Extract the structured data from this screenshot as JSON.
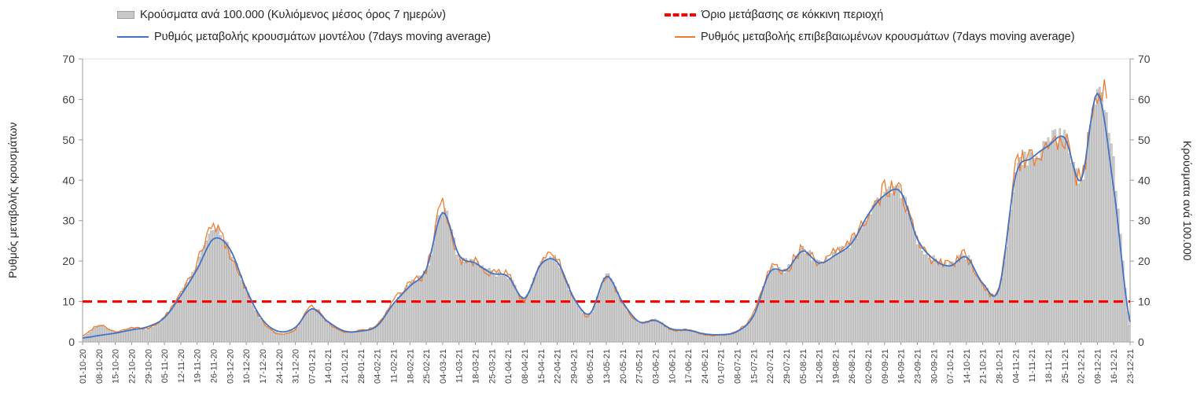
{
  "legend": {
    "bars_label": "Κρούσματα ανά 100.000 (Κυλιόμενος μέσος όρος 7 ημερών)",
    "threshold_label": "Όριο μετάβασης σε κόκκινη περιοχή",
    "model_label": "Ρυθμός μεταβολής κρουσμάτων μοντέλου (7days moving average)",
    "confirmed_label": "Ρυθμός μεταβολής επιβεβαιωμένων κρουσμάτων (7days moving average)"
  },
  "axes": {
    "left_title": "Ρυθμός μεταβολής κρουσμάτων",
    "right_title": "Κρούσματα ανά 100.000",
    "y_ticks": [
      0,
      10,
      20,
      30,
      40,
      50,
      60,
      70
    ],
    "y_max": 70
  },
  "colors": {
    "model_line": "#4472c4",
    "confirmed_line": "#ed7d31",
    "threshold_line": "#ff0000",
    "bar_fill": "#d2d2d2",
    "bar_stroke": "#a0a0a0",
    "axis_line": "#9b9b9b",
    "axis_text": "#404040"
  },
  "chart_data": {
    "type": "bar+line",
    "title": "",
    "ylim": [
      0,
      70
    ],
    "threshold_value": 10,
    "x_tick_labels": [
      "01-10-20",
      "08-10-20",
      "15-10-20",
      "22-10-20",
      "29-10-20",
      "05-11-20",
      "12-11-20",
      "19-11-20",
      "26-11-20",
      "03-12-20",
      "10-12-20",
      "17-12-20",
      "24-12-20",
      "31-12-20",
      "07-01-21",
      "14-01-21",
      "21-01-21",
      "28-01-21",
      "04-02-21",
      "11-02-21",
      "18-02-21",
      "25-02-21",
      "04-03-21",
      "11-03-21",
      "18-03-21",
      "25-03-21",
      "01-04-21",
      "08-04-21",
      "15-04-21",
      "22-04-21",
      "29-04-21",
      "06-05-21",
      "13-05-21",
      "20-05-21",
      "27-05-21",
      "03-06-21",
      "10-06-21",
      "17-06-21",
      "24-06-21",
      "01-07-21",
      "08-07-21",
      "15-07-21",
      "22-07-21",
      "29-07-21",
      "05-08-21",
      "12-08-21",
      "19-08-21",
      "26-08-21",
      "02-09-21",
      "09-09-21",
      "16-09-21",
      "23-09-21",
      "30-09-21",
      "07-10-21",
      "14-10-21",
      "21-10-21",
      "28-10-21",
      "04-11-21",
      "11-11-21",
      "18-11-21",
      "25-11-21",
      "02-12-21",
      "09-12-21",
      "16-12-21",
      "23-12-21"
    ],
    "series": [
      {
        "name": "Κρούσματα ανά 100.000 (Κυλιόμενος μέσος όρος 7 ημερών)",
        "type": "bar",
        "axis": "right",
        "values": [
          1.2,
          4.0,
          2.5,
          3.4,
          3.3,
          6.0,
          11.8,
          19.0,
          28.0,
          22.5,
          13.0,
          5.2,
          2.2,
          3.3,
          8.4,
          4.9,
          2.6,
          2.8,
          4.1,
          9.8,
          14.2,
          18.0,
          32.8,
          21.2,
          19.8,
          17.1,
          16.4,
          10.6,
          19.4,
          20.0,
          10.8,
          6.9,
          16.4,
          9.6,
          4.9,
          5.5,
          3.1,
          3.0,
          1.9,
          1.7,
          2.7,
          6.8,
          17.6,
          17.9,
          22.8,
          19.4,
          21.8,
          24.8,
          31.8,
          37.0,
          37.1,
          25.2,
          20.4,
          18.9,
          21.1,
          14.4,
          13.1,
          41.5,
          45.8,
          49.5,
          50.5,
          40.2,
          62.0,
          44.0,
          4.0
        ]
      },
      {
        "name": "Ρυθμός μεταβολής κρουσμάτων μοντέλου (7days moving average)",
        "type": "line",
        "axis": "left",
        "values": [
          1.0,
          1.6,
          2.2,
          3.0,
          3.8,
          6.0,
          11.5,
          18.0,
          25.5,
          23.0,
          13.0,
          5.5,
          2.6,
          3.6,
          8.2,
          5.0,
          2.7,
          2.7,
          4.0,
          9.5,
          13.8,
          18.0,
          32.0,
          21.5,
          19.5,
          17.0,
          16.2,
          10.8,
          19.2,
          19.8,
          11.0,
          7.0,
          16.2,
          9.8,
          5.0,
          5.3,
          3.2,
          2.9,
          2.0,
          1.8,
          2.6,
          6.5,
          17.3,
          17.8,
          22.5,
          19.5,
          21.5,
          24.5,
          31.5,
          36.3,
          37.0,
          25.5,
          20.5,
          18.8,
          21.0,
          14.5,
          13.2,
          41.0,
          45.5,
          48.5,
          50.5,
          40.0,
          61.5,
          38.0,
          5.0
        ]
      },
      {
        "name": "Ρυθμός μεταβολής επιβεβαιωμένων κρουσμάτων (7days moving average)",
        "type": "line",
        "axis": "left",
        "end_x_index": 62.6,
        "values": [
          1.5,
          4.2,
          2.6,
          3.5,
          3.4,
          6.2,
          12.0,
          19.5,
          28.5,
          22.0,
          13.0,
          5.0,
          2.0,
          3.2,
          8.6,
          4.8,
          2.5,
          2.9,
          4.2,
          10.0,
          14.5,
          18.0,
          33.2,
          21.0,
          20.0,
          17.2,
          16.5,
          10.5,
          19.6,
          20.2,
          10.6,
          6.8,
          16.5,
          9.5,
          4.8,
          5.6,
          3.0,
          3.0,
          1.8,
          1.7,
          2.8,
          7.0,
          17.8,
          18.0,
          23.0,
          19.3,
          22.0,
          25.0,
          32.0,
          37.5,
          37.2,
          25.0,
          20.3,
          19.0,
          21.2,
          14.3,
          13.0,
          42.0,
          46.0,
          50.0,
          50.5,
          40.5,
          62.5,
          52.0,
          10.0
        ]
      }
    ]
  }
}
